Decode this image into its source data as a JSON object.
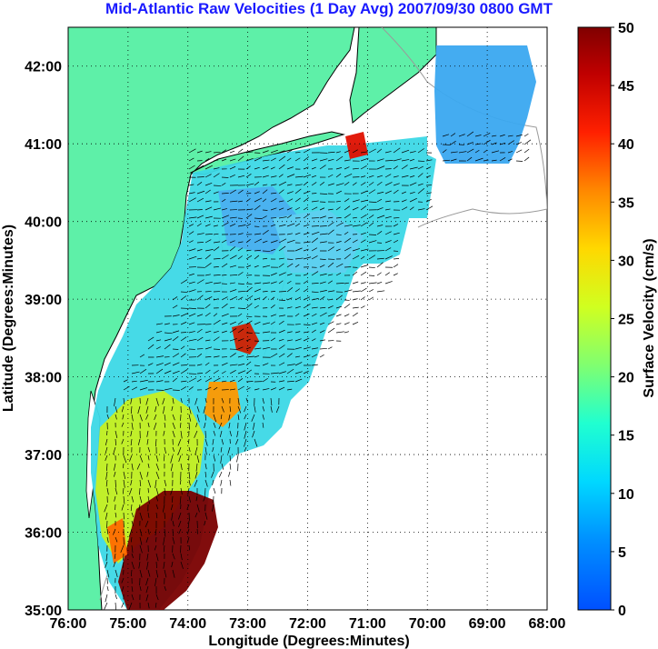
{
  "title": "Mid-Atlantic Raw Velocities (1 Day Avg) 2007/09/30 0800 GMT",
  "map": {
    "xlabel": "Longitude (Degrees:Minutes)",
    "ylabel": "Latitude (Degrees:Minutes)",
    "lon_ticks": [
      "76:00",
      "75:00",
      "74:00",
      "73:00",
      "72:00",
      "71:00",
      "70:00",
      "69:00",
      "68:00"
    ],
    "lat_ticks": [
      "35:00",
      "36:00",
      "37:00",
      "38:00",
      "39:00",
      "40:00",
      "41:00",
      "42:00"
    ],
    "lon_range": [
      -76,
      -68
    ],
    "lat_range": [
      35,
      42.5
    ],
    "grid": "dotted",
    "land_color": "#5ef0a8",
    "coast_color": "#000000",
    "bathymetry_color": "#9a9a9a"
  },
  "colorbar": {
    "label": "Surface Velocity (cm/s)",
    "ticks": [
      "0",
      "5",
      "10",
      "15",
      "20",
      "25",
      "30",
      "35",
      "40",
      "45",
      "50"
    ],
    "range": [
      0,
      50
    ],
    "colormap": "jet"
  }
}
